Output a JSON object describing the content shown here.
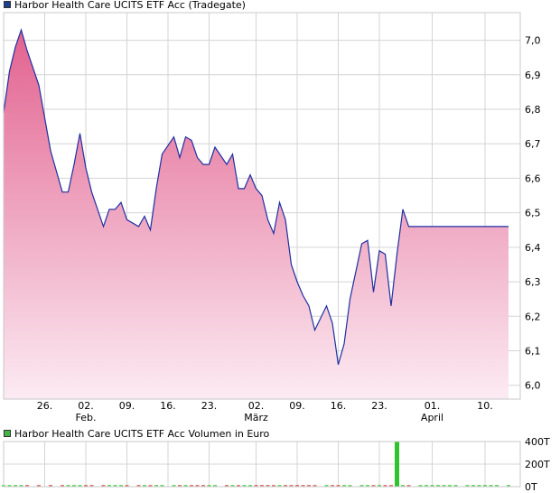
{
  "colors": {
    "line": "#1f2fa3",
    "fill_top": "#e2628f",
    "fill_bottom": "#fcebf2",
    "grid": "#d4d4d4",
    "volume_up": "#2ec42e",
    "volume_down": "#d04545",
    "legend_price": "#1a3f8f",
    "legend_volume": "#44b544"
  },
  "chart_data": [
    {
      "type": "area",
      "legend": "Harbor Health Care UCITS ETF Acc (Tradegate)",
      "y_ticks": [
        "7,0",
        "6,9",
        "6,8",
        "6,7",
        "6,6",
        "6,5",
        "6,4",
        "6,3",
        "6,2",
        "6,1",
        "6,0"
      ],
      "y_tick_values": [
        7.0,
        6.9,
        6.8,
        6.7,
        6.6,
        6.5,
        6.4,
        6.3,
        6.2,
        6.1,
        6.0
      ],
      "ylim": [
        5.96,
        7.08
      ],
      "x_ticks": [
        "26.",
        "02.",
        "09.",
        "16.",
        "23.",
        "02.",
        "09.",
        "16.",
        "23.",
        "01.",
        "10."
      ],
      "x_tick_dates": [
        "2024-01-26",
        "2024-02-02",
        "2024-02-09",
        "2024-02-16",
        "2024-02-23",
        "2024-03-02",
        "2024-03-09",
        "2024-03-16",
        "2024-03-23",
        "2024-04-01",
        "2024-04-10"
      ],
      "month_labels": [
        {
          "label": "Feb.",
          "date": "2024-02-02"
        },
        {
          "label": "März",
          "date": "2024-03-02"
        },
        {
          "label": "April",
          "date": "2024-04-01"
        }
      ],
      "xlim": [
        "2024-01-19",
        "2024-04-16"
      ],
      "grid": true,
      "x": [
        "2024-01-19",
        "2024-01-20",
        "2024-01-21",
        "2024-01-22",
        "2024-01-23",
        "2024-01-25",
        "2024-01-27",
        "2024-01-29",
        "2024-01-30",
        "2024-01-31",
        "2024-02-01",
        "2024-02-02",
        "2024-02-03",
        "2024-02-05",
        "2024-02-06",
        "2024-02-07",
        "2024-02-08",
        "2024-02-09",
        "2024-02-11",
        "2024-02-12",
        "2024-02-13",
        "2024-02-14",
        "2024-02-15",
        "2024-02-17",
        "2024-02-18",
        "2024-02-19",
        "2024-02-20",
        "2024-02-21",
        "2024-02-22",
        "2024-02-23",
        "2024-02-24",
        "2024-02-26",
        "2024-02-27",
        "2024-02-28",
        "2024-02-29",
        "2024-03-01",
        "2024-03-02",
        "2024-03-03",
        "2024-03-04",
        "2024-03-05",
        "2024-03-06",
        "2024-03-07",
        "2024-03-08",
        "2024-03-09",
        "2024-03-10",
        "2024-03-11",
        "2024-03-12",
        "2024-03-14",
        "2024-03-15",
        "2024-03-16",
        "2024-03-17",
        "2024-03-18",
        "2024-03-20",
        "2024-03-21",
        "2024-03-22",
        "2024-03-23",
        "2024-03-24",
        "2024-03-25",
        "2024-03-26",
        "2024-03-27",
        "2024-03-28",
        "2024-03-30",
        "2024-03-31",
        "2024-04-01",
        "2024-04-02",
        "2024-04-03",
        "2024-04-04",
        "2024-04-05",
        "2024-04-07",
        "2024-04-08",
        "2024-04-09",
        "2024-04-10",
        "2024-04-11",
        "2024-04-12",
        "2024-04-14"
      ],
      "y": [
        6.79,
        6.91,
        6.98,
        7.03,
        6.97,
        6.87,
        6.68,
        6.56,
        6.56,
        6.64,
        6.73,
        6.63,
        6.56,
        6.46,
        6.51,
        6.51,
        6.53,
        6.48,
        6.46,
        6.49,
        6.45,
        6.57,
        6.67,
        6.72,
        6.66,
        6.72,
        6.71,
        6.66,
        6.64,
        6.64,
        6.69,
        6.64,
        6.67,
        6.57,
        6.57,
        6.61,
        6.57,
        6.55,
        6.48,
        6.44,
        6.53,
        6.48,
        6.35,
        6.3,
        6.26,
        6.23,
        6.16,
        6.23,
        6.18,
        6.06,
        6.12,
        6.25,
        6.41,
        6.42,
        6.27,
        6.39,
        6.38,
        6.23,
        6.38,
        6.51,
        6.46,
        6.46,
        6.46,
        6.46,
        6.46,
        6.46,
        6.46,
        6.46,
        6.46,
        6.46,
        6.46,
        6.46,
        6.46,
        6.46,
        6.46
      ]
    },
    {
      "type": "bar",
      "legend": "Harbor Health Care UCITS ETF Acc Volumen in Euro",
      "y_ticks": [
        "400T",
        "200T",
        "0T"
      ],
      "y_tick_values": [
        400,
        200,
        0
      ],
      "ylim": [
        0,
        400
      ],
      "grid": true,
      "x": [
        "2024-03-26"
      ],
      "values": [
        405
      ]
    }
  ]
}
